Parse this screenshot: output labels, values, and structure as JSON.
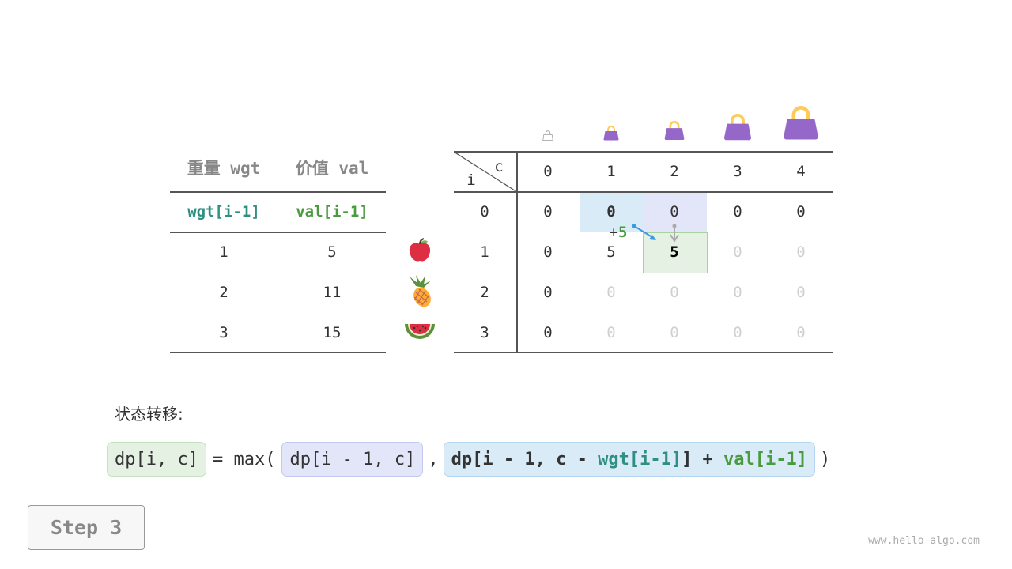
{
  "items_table": {
    "headers": [
      "重量 wgt",
      "价值 val"
    ],
    "subheaders": [
      "wgt[i-1]",
      "val[i-1]"
    ],
    "rows": [
      [
        "1",
        "5"
      ],
      [
        "2",
        "11"
      ],
      [
        "3",
        "15"
      ]
    ],
    "item_icons": [
      "apple-icon",
      "pineapple-icon",
      "watermelon-icon"
    ]
  },
  "dp_table": {
    "corner_col": "c",
    "corner_row": "i",
    "col_headers": [
      "0",
      "1",
      "2",
      "3",
      "4"
    ],
    "row_headers": [
      "0",
      "1",
      "2",
      "3"
    ],
    "cells": [
      [
        "0",
        "0",
        "0",
        "0",
        "0"
      ],
      [
        "0",
        "5",
        "5",
        "0",
        "0"
      ],
      [
        "0",
        "0",
        "0",
        "0",
        "0"
      ],
      [
        "0",
        "0",
        "0",
        "0",
        "0"
      ]
    ],
    "filled": [
      [
        true,
        true,
        true,
        true,
        true
      ],
      [
        true,
        true,
        true,
        false,
        false
      ],
      [
        true,
        false,
        false,
        false,
        false
      ],
      [
        true,
        false,
        false,
        false,
        false
      ]
    ],
    "capacity_icons": [
      "bag-icon",
      "bag-icon",
      "bag-icon",
      "bag-icon",
      "bag-icon"
    ],
    "plus_label": "+",
    "plus_value": "5"
  },
  "transition": {
    "label": "状态转移:",
    "lhs": "dp[i, c]",
    "eq": "= max(",
    "opt1": "dp[i - 1, c]",
    "comma": ",",
    "opt2_a": "dp[i - 1, c - ",
    "opt2_wgt": "wgt[i-1]",
    "opt2_b": "] + ",
    "opt2_val": "val[i-1]",
    "close": ")"
  },
  "step_label": "Step 3",
  "watermark": "www.hello-algo.com",
  "colors": {
    "green_bg": "#e5f2e3",
    "purple_bg": "#e3e5f8",
    "blue_bg": "#daebf8",
    "teal": "#2f8f83",
    "green": "#4a9a3f",
    "bag": "#9567c9"
  }
}
